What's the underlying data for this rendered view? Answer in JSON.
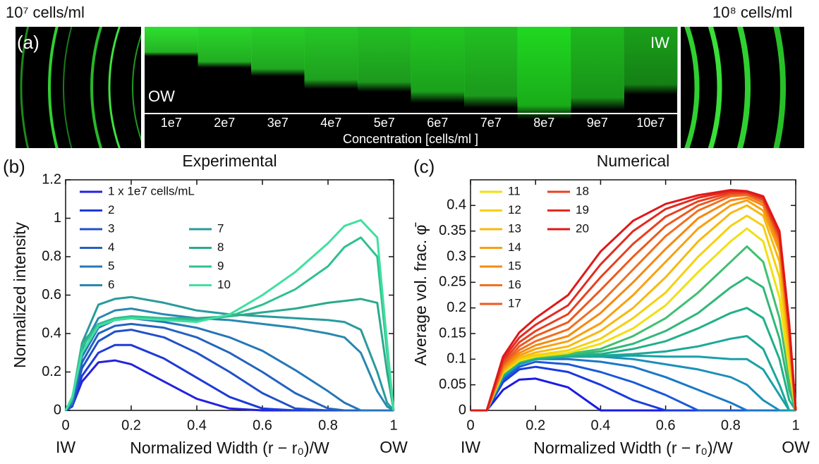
{
  "panel_a": {
    "label": "(a)",
    "left_caption": "10⁷ cells/ml",
    "right_caption": "10⁸ cells/ml",
    "inner_label": "IW",
    "outer_label": "OW",
    "concentrations": [
      "1e7",
      "2e7",
      "3e7",
      "4e7",
      "5e7",
      "6e7",
      "7e7",
      "8e7",
      "9e7",
      "10e7"
    ],
    "axis_label": "Concentration [cells/ml ]"
  },
  "chart_data": [
    {
      "type": "line",
      "panel_label": "(b)",
      "title": "Experimental",
      "y_label": "Normalized intensity",
      "x_label": "Normalized Width (r − r₀)/W",
      "x_end_labels": [
        "IW",
        "OW"
      ],
      "xlim": [
        0,
        1
      ],
      "ylim": [
        0,
        1.2
      ],
      "xticks": [
        0,
        0.2,
        0.4,
        0.6,
        0.8,
        1
      ],
      "yticks": [
        0,
        0.2,
        0.4,
        0.6,
        0.8,
        1,
        1.2
      ],
      "x": [
        0,
        0.02,
        0.05,
        0.1,
        0.15,
        0.2,
        0.3,
        0.4,
        0.5,
        0.6,
        0.7,
        0.8,
        0.85,
        0.9,
        0.95,
        0.98,
        1
      ],
      "series": [
        {
          "name": "1 x 1e7 cells/mL",
          "color": "#2222e0",
          "values": [
            0,
            0.02,
            0.15,
            0.25,
            0.26,
            0.24,
            0.15,
            0.06,
            0.01,
            0,
            0,
            0,
            0,
            0,
            0,
            0,
            0
          ]
        },
        {
          "name": "2",
          "color": "#1f3ad8",
          "values": [
            0,
            0.02,
            0.18,
            0.3,
            0.34,
            0.34,
            0.27,
            0.17,
            0.07,
            0.01,
            0,
            0,
            0,
            0,
            0,
            0,
            0
          ]
        },
        {
          "name": "3",
          "color": "#2050c8",
          "values": [
            0,
            0.03,
            0.22,
            0.36,
            0.41,
            0.42,
            0.38,
            0.3,
            0.2,
            0.09,
            0.01,
            0,
            0,
            0,
            0,
            0,
            0
          ]
        },
        {
          "name": "4",
          "color": "#2463c0",
          "values": [
            0,
            0.03,
            0.25,
            0.4,
            0.44,
            0.45,
            0.43,
            0.38,
            0.3,
            0.2,
            0.09,
            0.01,
            0,
            0,
            0,
            0,
            0
          ]
        },
        {
          "name": "5",
          "color": "#2676b8",
          "values": [
            0,
            0.04,
            0.28,
            0.43,
            0.47,
            0.48,
            0.46,
            0.43,
            0.38,
            0.31,
            0.21,
            0.1,
            0.04,
            0,
            0,
            0,
            0
          ]
        },
        {
          "name": "6",
          "color": "#2888b0",
          "values": [
            0,
            0.05,
            0.32,
            0.48,
            0.52,
            0.53,
            0.5,
            0.48,
            0.47,
            0.45,
            0.43,
            0.4,
            0.38,
            0.3,
            0.1,
            0.02,
            0
          ]
        },
        {
          "name": "7",
          "color": "#2a9a9c",
          "values": [
            0,
            0.05,
            0.35,
            0.55,
            0.58,
            0.59,
            0.56,
            0.52,
            0.5,
            0.49,
            0.48,
            0.47,
            0.46,
            0.42,
            0.2,
            0.04,
            0
          ]
        },
        {
          "name": "8",
          "color": "#2aaa8c",
          "values": [
            0,
            0.06,
            0.35,
            0.45,
            0.47,
            0.48,
            0.48,
            0.48,
            0.49,
            0.51,
            0.53,
            0.56,
            0.57,
            0.58,
            0.56,
            0.2,
            0
          ]
        },
        {
          "name": "9",
          "color": "#30c090",
          "values": [
            0,
            0.06,
            0.33,
            0.45,
            0.48,
            0.49,
            0.48,
            0.47,
            0.49,
            0.55,
            0.63,
            0.75,
            0.85,
            0.9,
            0.8,
            0.3,
            0
          ]
        },
        {
          "name": "10",
          "color": "#40e0a0",
          "values": [
            0,
            0.07,
            0.3,
            0.44,
            0.47,
            0.48,
            0.47,
            0.46,
            0.5,
            0.6,
            0.72,
            0.87,
            0.96,
            0.99,
            0.9,
            0.35,
            0
          ]
        }
      ]
    },
    {
      "type": "line",
      "panel_label": "(c)",
      "title": "Numerical",
      "y_label": "Average vol. frac. φ̄",
      "x_label": "Normalized Width (r − r₀)/W",
      "x_end_labels": [
        "IW",
        "OW"
      ],
      "xlim": [
        0,
        1
      ],
      "ylim": [
        0,
        0.45
      ],
      "xticks": [
        0,
        0.2,
        0.4,
        0.6,
        0.8,
        1
      ],
      "yticks": [
        0,
        0.05,
        0.1,
        0.15,
        0.2,
        0.25,
        0.3,
        0.35,
        0.4
      ],
      "x": [
        0,
        0.05,
        0.1,
        0.15,
        0.2,
        0.3,
        0.4,
        0.5,
        0.6,
        0.7,
        0.8,
        0.85,
        0.9,
        0.95,
        0.98,
        1
      ],
      "series": [
        {
          "color": "#1a1ae6",
          "values": [
            0,
            0,
            0.04,
            0.06,
            0.062,
            0.045,
            0,
            0,
            0,
            0,
            0,
            0,
            0,
            0,
            0,
            0
          ]
        },
        {
          "color": "#1a3ae0",
          "values": [
            0,
            0,
            0.055,
            0.08,
            0.085,
            0.075,
            0.05,
            0.02,
            0,
            0,
            0,
            0,
            0,
            0,
            0,
            0
          ]
        },
        {
          "color": "#1a5ad8",
          "values": [
            0,
            0,
            0.06,
            0.085,
            0.095,
            0.09,
            0.075,
            0.055,
            0.03,
            0,
            0,
            0,
            0,
            0,
            0,
            0
          ]
        },
        {
          "color": "#1a78c8",
          "values": [
            0,
            0,
            0.065,
            0.09,
            0.1,
            0.1,
            0.095,
            0.085,
            0.065,
            0.04,
            0.015,
            0,
            0,
            0,
            0,
            0
          ]
        },
        {
          "color": "#1a90b8",
          "values": [
            0,
            0,
            0.065,
            0.09,
            0.1,
            0.105,
            0.105,
            0.1,
            0.09,
            0.08,
            0.065,
            0.05,
            0.02,
            0,
            0,
            0
          ]
        },
        {
          "color": "#1aa0a8",
          "values": [
            0,
            0,
            0.067,
            0.092,
            0.1,
            0.105,
            0.105,
            0.107,
            0.105,
            0.105,
            0.1,
            0.1,
            0.08,
            0.03,
            0,
            0
          ]
        },
        {
          "color": "#1aa898",
          "values": [
            0,
            0,
            0.068,
            0.093,
            0.1,
            0.105,
            0.107,
            0.11,
            0.115,
            0.125,
            0.14,
            0.145,
            0.12,
            0.05,
            0,
            0
          ]
        },
        {
          "color": "#20b088",
          "values": [
            0,
            0,
            0.07,
            0.094,
            0.102,
            0.107,
            0.11,
            0.12,
            0.135,
            0.16,
            0.19,
            0.2,
            0.18,
            0.1,
            0.02,
            0
          ]
        },
        {
          "color": "#30b878",
          "values": [
            0,
            0,
            0.07,
            0.095,
            0.103,
            0.108,
            0.115,
            0.13,
            0.155,
            0.19,
            0.24,
            0.26,
            0.24,
            0.14,
            0.04,
            0
          ]
        },
        {
          "color": "#40c070",
          "values": [
            0,
            0,
            0.072,
            0.096,
            0.104,
            0.11,
            0.12,
            0.145,
            0.18,
            0.23,
            0.29,
            0.32,
            0.29,
            0.18,
            0.06,
            0
          ]
        },
        {
          "name": "11",
          "color": "#f0e010",
          "values": [
            0,
            0,
            0.073,
            0.097,
            0.105,
            0.112,
            0.13,
            0.16,
            0.205,
            0.27,
            0.33,
            0.355,
            0.33,
            0.22,
            0.08,
            0
          ]
        },
        {
          "name": "12",
          "color": "#f5d010",
          "values": [
            0,
            0,
            0.075,
            0.1,
            0.108,
            0.117,
            0.14,
            0.18,
            0.23,
            0.3,
            0.36,
            0.38,
            0.36,
            0.26,
            0.1,
            0
          ]
        },
        {
          "name": "13",
          "color": "#f8b810",
          "values": [
            0,
            0,
            0.077,
            0.103,
            0.113,
            0.125,
            0.155,
            0.2,
            0.26,
            0.33,
            0.385,
            0.4,
            0.38,
            0.29,
            0.12,
            0
          ]
        },
        {
          "name": "14",
          "color": "#f8a010",
          "values": [
            0,
            0,
            0.08,
            0.107,
            0.12,
            0.135,
            0.17,
            0.225,
            0.29,
            0.355,
            0.4,
            0.41,
            0.39,
            0.31,
            0.13,
            0
          ]
        },
        {
          "name": "15",
          "color": "#f58a10",
          "values": [
            0,
            0,
            0.083,
            0.112,
            0.127,
            0.145,
            0.19,
            0.25,
            0.315,
            0.375,
            0.41,
            0.415,
            0.4,
            0.32,
            0.14,
            0
          ]
        },
        {
          "name": "16",
          "color": "#f07020",
          "values": [
            0,
            0,
            0.087,
            0.118,
            0.135,
            0.158,
            0.21,
            0.275,
            0.34,
            0.39,
            0.418,
            0.42,
            0.405,
            0.33,
            0.15,
            0
          ]
        },
        {
          "name": "17",
          "color": "#ec5a20",
          "values": [
            0,
            0,
            0.09,
            0.125,
            0.145,
            0.172,
            0.235,
            0.3,
            0.36,
            0.4,
            0.422,
            0.423,
            0.41,
            0.335,
            0.155,
            0
          ]
        },
        {
          "name": "18",
          "color": "#e84020",
          "values": [
            0,
            0,
            0.095,
            0.133,
            0.155,
            0.188,
            0.26,
            0.325,
            0.378,
            0.408,
            0.425,
            0.425,
            0.412,
            0.34,
            0.16,
            0
          ]
        },
        {
          "name": "19",
          "color": "#e42a20",
          "values": [
            0,
            0,
            0.1,
            0.142,
            0.167,
            0.205,
            0.285,
            0.35,
            0.393,
            0.415,
            0.428,
            0.427,
            0.415,
            0.345,
            0.165,
            0
          ]
        },
        {
          "name": "20",
          "color": "#e01818",
          "values": [
            0,
            0,
            0.105,
            0.152,
            0.18,
            0.225,
            0.31,
            0.37,
            0.403,
            0.42,
            0.43,
            0.428,
            0.418,
            0.35,
            0.17,
            0
          ]
        }
      ]
    }
  ]
}
